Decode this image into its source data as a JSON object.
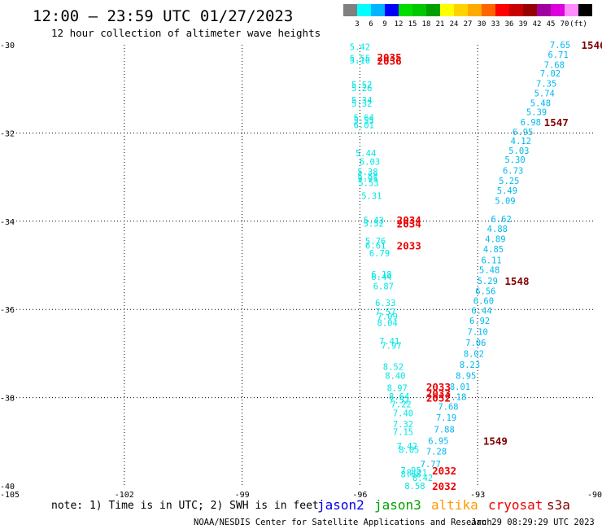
{
  "header": {
    "title": "12:00 – 23:59 UTC 01/27/2023",
    "subtitle": "12 hour collection of altimeter wave heights"
  },
  "colorbar": {
    "colors": [
      "#808080",
      "#00ffff",
      "#00b4ff",
      "#0000ff",
      "#00dc00",
      "#00c800",
      "#00a000",
      "#ffff00",
      "#ffd200",
      "#ffaa00",
      "#ff6400",
      "#ff0000",
      "#c80000",
      "#960000",
      "#a000a0",
      "#dc00dc",
      "#ff8cff",
      "#000000"
    ],
    "labels": [
      "3",
      "6",
      "9",
      "12",
      "15",
      "18",
      "21",
      "24",
      "27",
      "30",
      "33",
      "36",
      "39",
      "42",
      "45",
      "70",
      "(ft)"
    ]
  },
  "footer": {
    "note": "note: 1) Time is in UTC; 2) SWH is in feet",
    "credit": "NOAA/NESDIS Center for Satellite Applications and Research",
    "timestamp": "Jan 29 08:29:29 UTC 2023",
    "satellites": [
      {
        "name": "jason2",
        "color": "#0000ee"
      },
      {
        "name": "jason3",
        "color": "#00a000"
      },
      {
        "name": "altika",
        "color": "#ff9900"
      },
      {
        "name": "cryosat",
        "color": "#ee0000"
      },
      {
        "name": "s3a",
        "color": "#800000"
      }
    ]
  },
  "chart_data": {
    "type": "scatter",
    "title": "12:00 – 23:59 UTC 01/27/2023",
    "subtitle": "12 hour collection of altimeter wave heights",
    "xlim": [
      -105,
      -90
    ],
    "ylim": [
      -40,
      -30
    ],
    "xticks": [
      {
        "value": -105,
        "label": "-105"
      },
      {
        "value": -102,
        "label": "-102"
      },
      {
        "value": -99,
        "label": "-99"
      },
      {
        "value": -96,
        "label": "-96"
      },
      {
        "value": -93,
        "label": "-93"
      },
      {
        "value": -90,
        "label": "-90"
      }
    ],
    "yticks": [
      {
        "value": -30,
        "label": "-30"
      },
      {
        "value": -32,
        "label": "-32"
      },
      {
        "value": -34,
        "label": "-34"
      },
      {
        "value": -36,
        "label": "-36"
      },
      {
        "value": -38,
        "label": "-38"
      },
      {
        "value": -40,
        "label": "-40"
      }
    ],
    "grid": true,
    "track_colors": {
      "west": "#00e5e5",
      "east": "#00b8ee"
    },
    "series": [
      {
        "track": "west",
        "points": [
          {
            "x": -96.0,
            "y": -30.05,
            "v": "5.42"
          },
          {
            "x": -96.0,
            "y": -30.3,
            "v": "5.55"
          },
          {
            "x": -96.0,
            "y": -30.35,
            "v": "5.16"
          },
          {
            "x": -95.95,
            "y": -30.9,
            "v": "5.52"
          },
          {
            "x": -95.95,
            "y": -30.98,
            "v": "5.26"
          },
          {
            "x": -95.95,
            "y": -31.25,
            "v": "5.34"
          },
          {
            "x": -95.95,
            "y": -31.33,
            "v": "5.32"
          },
          {
            "x": -95.9,
            "y": -31.65,
            "v": "5.64"
          },
          {
            "x": -95.9,
            "y": -31.72,
            "v": "5.55"
          },
          {
            "x": -95.9,
            "y": -31.82,
            "v": "6.01"
          },
          {
            "x": -95.85,
            "y": -32.45,
            "v": "5.44"
          },
          {
            "x": -95.75,
            "y": -32.65,
            "v": "6.03"
          },
          {
            "x": -95.8,
            "y": -32.88,
            "v": "5.38"
          },
          {
            "x": -95.8,
            "y": -32.98,
            "v": "5.52"
          },
          {
            "x": -95.8,
            "y": -33.03,
            "v": "5.95"
          },
          {
            "x": -95.78,
            "y": -33.13,
            "v": "5.53"
          },
          {
            "x": -95.7,
            "y": -33.42,
            "v": "5.31"
          },
          {
            "x": -95.65,
            "y": -33.98,
            "v": "5.43"
          },
          {
            "x": -95.65,
            "y": -34.05,
            "v": "5.52"
          },
          {
            "x": -95.6,
            "y": -34.45,
            "v": "5.76"
          },
          {
            "x": -95.6,
            "y": -34.55,
            "v": "6.61"
          },
          {
            "x": -95.5,
            "y": -34.72,
            "v": "6.79"
          },
          {
            "x": -95.45,
            "y": -35.2,
            "v": "6.18"
          },
          {
            "x": -95.45,
            "y": -35.26,
            "v": "6.44"
          },
          {
            "x": -95.4,
            "y": -35.47,
            "v": "6.87"
          },
          {
            "x": -95.35,
            "y": -35.85,
            "v": "6.33"
          },
          {
            "x": -95.35,
            "y": -36.05,
            "v": "7.57"
          },
          {
            "x": -95.3,
            "y": -36.15,
            "v": "7.09"
          },
          {
            "x": -95.3,
            "y": -36.3,
            "v": "8.04"
          },
          {
            "x": -95.25,
            "y": -36.72,
            "v": "7.41"
          },
          {
            "x": -95.2,
            "y": -36.82,
            "v": "7.97"
          },
          {
            "x": -95.15,
            "y": -37.3,
            "v": "8.52"
          },
          {
            "x": -95.1,
            "y": -37.5,
            "v": "8.40"
          },
          {
            "x": -95.05,
            "y": -37.78,
            "v": "8.97"
          },
          {
            "x": -95.0,
            "y": -37.97,
            "v": "8.64"
          },
          {
            "x": -95.0,
            "y": -38.05,
            "v": "7.52"
          },
          {
            "x": -94.95,
            "y": -38.15,
            "v": "7.22"
          },
          {
            "x": -94.9,
            "y": -38.35,
            "v": "7.40"
          },
          {
            "x": -94.9,
            "y": -38.6,
            "v": "7.32"
          },
          {
            "x": -94.9,
            "y": -38.77,
            "v": "7.15"
          },
          {
            "x": -94.8,
            "y": -39.1,
            "v": "7.42"
          },
          {
            "x": -94.75,
            "y": -39.18,
            "v": "8.05"
          },
          {
            "x": -94.7,
            "y": -39.65,
            "v": "7.95"
          },
          {
            "x": -94.55,
            "y": -39.7,
            "v": "8.21"
          },
          {
            "x": -94.7,
            "y": -39.73,
            "v": "8.68"
          },
          {
            "x": -94.4,
            "y": -39.82,
            "v": "8.42"
          },
          {
            "x": -94.6,
            "y": -40.0,
            "v": "8.58"
          }
        ]
      },
      {
        "track": "east",
        "points": [
          {
            "x": -90.9,
            "y": -30.0,
            "v": "7.65"
          },
          {
            "x": -90.95,
            "y": -30.22,
            "v": "6.71"
          },
          {
            "x": -91.05,
            "y": -30.45,
            "v": "7.68"
          },
          {
            "x": -91.15,
            "y": -30.65,
            "v": "7.02"
          },
          {
            "x": -91.25,
            "y": -30.88,
            "v": "7.35"
          },
          {
            "x": -91.3,
            "y": -31.1,
            "v": "5.74"
          },
          {
            "x": -91.4,
            "y": -31.32,
            "v": "5.48"
          },
          {
            "x": -91.5,
            "y": -31.52,
            "v": "5.39"
          },
          {
            "x": -91.65,
            "y": -31.75,
            "v": "6.98"
          },
          {
            "x": -91.85,
            "y": -31.97,
            "v": "6.95"
          },
          {
            "x": -91.9,
            "y": -32.18,
            "v": "4.12"
          },
          {
            "x": -91.95,
            "y": -32.4,
            "v": "5.03"
          },
          {
            "x": -92.05,
            "y": -32.6,
            "v": "5.30"
          },
          {
            "x": -92.1,
            "y": -32.85,
            "v": "6.73"
          },
          {
            "x": -92.2,
            "y": -33.08,
            "v": "5.25"
          },
          {
            "x": -92.25,
            "y": -33.3,
            "v": "5.49"
          },
          {
            "x": -92.3,
            "y": -33.53,
            "v": "5.09"
          },
          {
            "x": -92.4,
            "y": -33.95,
            "v": "6.62"
          },
          {
            "x": -92.5,
            "y": -34.17,
            "v": "4.88"
          },
          {
            "x": -92.55,
            "y": -34.4,
            "v": "4.89"
          },
          {
            "x": -92.6,
            "y": -34.63,
            "v": "4.85"
          },
          {
            "x": -92.65,
            "y": -34.88,
            "v": "6.11"
          },
          {
            "x": -92.7,
            "y": -35.1,
            "v": "5.48"
          },
          {
            "x": -92.75,
            "y": -35.35,
            "v": "5.29"
          },
          {
            "x": -92.8,
            "y": -35.58,
            "v": "6.56"
          },
          {
            "x": -92.85,
            "y": -35.8,
            "v": "6.60"
          },
          {
            "x": -92.9,
            "y": -36.02,
            "v": "6.44"
          },
          {
            "x": -92.95,
            "y": -36.25,
            "v": "6.92"
          },
          {
            "x": -93.0,
            "y": -36.5,
            "v": "7.10"
          },
          {
            "x": -93.05,
            "y": -36.75,
            "v": "7.06"
          },
          {
            "x": -93.1,
            "y": -37.0,
            "v": "8.02"
          },
          {
            "x": -93.2,
            "y": -37.25,
            "v": "8.23"
          },
          {
            "x": -93.3,
            "y": -37.5,
            "v": "8.95"
          },
          {
            "x": -93.45,
            "y": -37.75,
            "v": "8.01"
          },
          {
            "x": -93.55,
            "y": -37.98,
            "v": "7.18"
          },
          {
            "x": -93.75,
            "y": -38.2,
            "v": "7.68"
          },
          {
            "x": -93.8,
            "y": -38.45,
            "v": "7.19"
          },
          {
            "x": -93.85,
            "y": -38.72,
            "v": "7.88"
          },
          {
            "x": -94.0,
            "y": -38.98,
            "v": "6.95"
          },
          {
            "x": -94.05,
            "y": -39.22,
            "v": "7.28"
          },
          {
            "x": -94.2,
            "y": -39.5,
            "v": "7.77"
          }
        ]
      }
    ],
    "time_labels": [
      {
        "x": -95.25,
        "y": -30.28,
        "text": "2035",
        "color": "#ee0000"
      },
      {
        "x": -95.25,
        "y": -30.36,
        "text": "2036",
        "color": "#ee0000"
      },
      {
        "x": -94.75,
        "y": -33.97,
        "text": "2034",
        "color": "#ee0000"
      },
      {
        "x": -94.75,
        "y": -34.05,
        "text": "2034",
        "color": "#ee0000"
      },
      {
        "x": -94.75,
        "y": -34.55,
        "text": "2033",
        "color": "#ee0000"
      },
      {
        "x": -94.0,
        "y": -37.75,
        "text": "2033",
        "color": "#ee0000"
      },
      {
        "x": -94.0,
        "y": -37.9,
        "text": "2033",
        "color": "#ee0000"
      },
      {
        "x": -94.0,
        "y": -38.0,
        "text": "2032",
        "color": "#ee0000"
      },
      {
        "x": -93.85,
        "y": -39.65,
        "text": "2032",
        "color": "#ee0000"
      },
      {
        "x": -93.85,
        "y": -40.0,
        "text": "2032",
        "color": "#ee0000"
      },
      {
        "x": -90.05,
        "y": -30.0,
        "text": "1546",
        "color": "#800000"
      },
      {
        "x": -91.0,
        "y": -31.75,
        "text": "1547",
        "color": "#800000"
      },
      {
        "x": -92.0,
        "y": -35.35,
        "text": "1548",
        "color": "#800000"
      },
      {
        "x": -92.55,
        "y": -38.98,
        "text": "1549",
        "color": "#800000"
      }
    ]
  }
}
